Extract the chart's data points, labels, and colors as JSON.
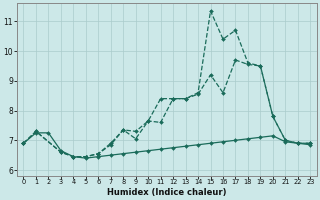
{
  "xlabel": "Humidex (Indice chaleur)",
  "bg_color": "#cce8e8",
  "grid_color": "#aacccc",
  "line_color": "#1a6b5a",
  "spine_color": "#888888",
  "xlim": [
    -0.5,
    23.5
  ],
  "ylim": [
    5.8,
    11.6
  ],
  "xticks": [
    0,
    1,
    2,
    3,
    4,
    5,
    6,
    7,
    8,
    9,
    10,
    11,
    12,
    13,
    14,
    15,
    16,
    17,
    18,
    19,
    20,
    21,
    22,
    23
  ],
  "yticks": [
    6,
    7,
    8,
    9,
    10,
    11
  ],
  "line_spike": {
    "x": [
      0,
      1,
      3,
      4,
      5,
      6,
      7,
      8,
      9,
      10,
      11,
      12,
      13,
      14,
      15,
      16,
      17,
      18,
      19,
      20,
      21,
      22,
      23
    ],
    "y": [
      6.9,
      7.3,
      6.6,
      6.45,
      6.45,
      6.55,
      6.9,
      7.35,
      7.3,
      7.65,
      8.4,
      8.4,
      8.4,
      8.6,
      11.35,
      10.4,
      10.7,
      9.6,
      9.5,
      7.8,
      7.0,
      6.9,
      6.9
    ]
  },
  "line_mid": {
    "x": [
      0,
      1,
      3,
      4,
      5,
      6,
      7,
      8,
      9,
      10,
      11,
      12,
      13,
      14,
      15,
      16,
      17,
      18,
      19,
      20,
      21,
      22,
      23
    ],
    "y": [
      6.9,
      7.3,
      6.6,
      6.45,
      6.45,
      6.55,
      6.85,
      7.35,
      7.05,
      7.65,
      7.6,
      8.4,
      8.4,
      8.55,
      9.2,
      8.6,
      9.7,
      9.55,
      9.5,
      7.8,
      7.0,
      6.9,
      6.9
    ]
  },
  "line_flat": {
    "x": [
      0,
      1,
      2,
      3,
      4,
      5,
      6,
      7,
      8,
      9,
      10,
      11,
      12,
      13,
      14,
      15,
      16,
      17,
      18,
      19,
      20,
      21,
      22,
      23
    ],
    "y": [
      6.9,
      7.25,
      7.25,
      6.65,
      6.45,
      6.4,
      6.45,
      6.5,
      6.55,
      6.6,
      6.65,
      6.7,
      6.75,
      6.8,
      6.85,
      6.9,
      6.95,
      7.0,
      7.05,
      7.1,
      7.15,
      6.95,
      6.9,
      6.85
    ]
  }
}
